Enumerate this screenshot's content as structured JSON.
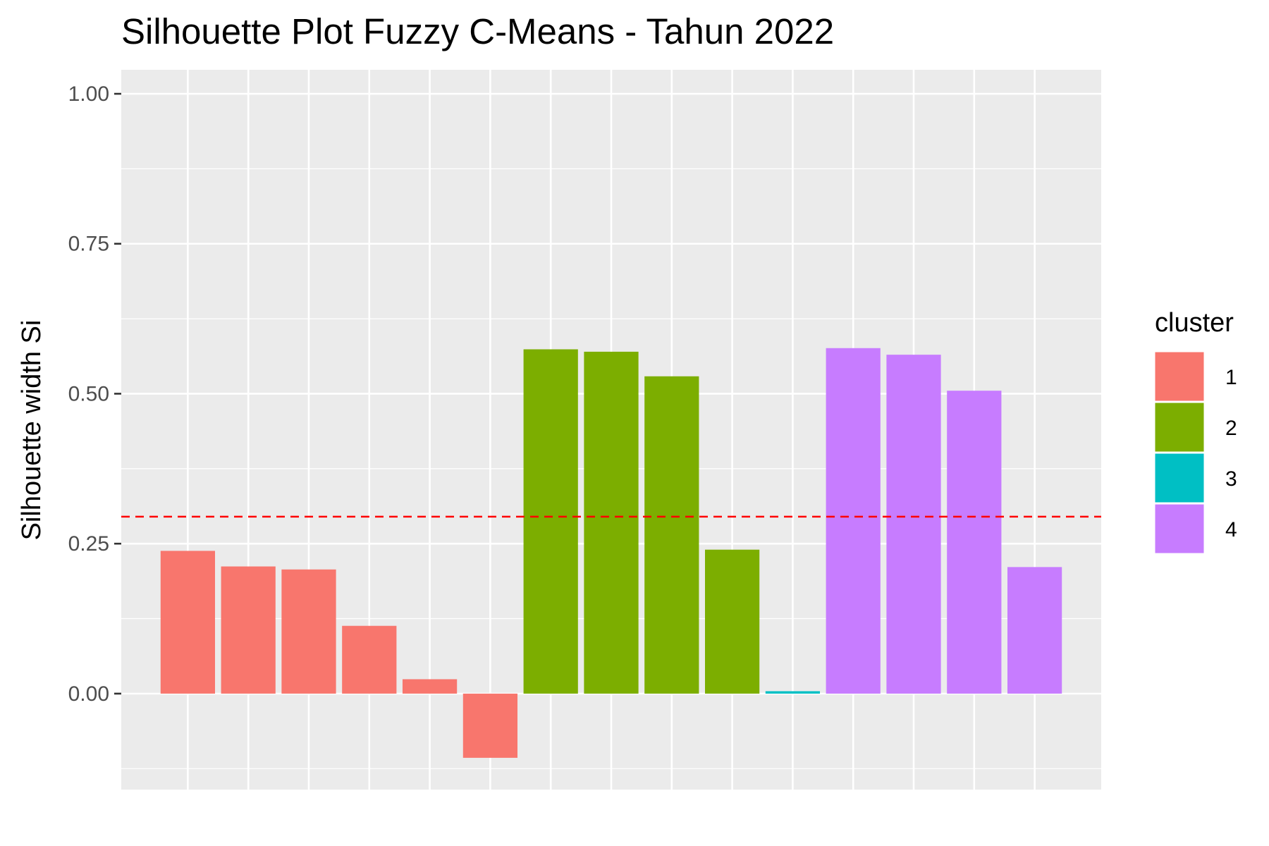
{
  "chart_data": {
    "type": "bar",
    "title": "Silhouette Plot Fuzzy C-Means - Tahun 2022",
    "xlabel": "",
    "ylabel": "Silhouette width Si",
    "ylim": [
      -0.16,
      1.04
    ],
    "yticks": [
      0.0,
      0.25,
      0.5,
      0.75,
      1.0
    ],
    "ytick_labels": [
      "0.00",
      "0.25",
      "0.50",
      "0.75",
      "1.00"
    ],
    "grid": true,
    "legend": {
      "title": "cluster",
      "placement": "right",
      "entries": [
        {
          "label": "1",
          "color": "#F8766D"
        },
        {
          "label": "2",
          "color": "#7CAE00"
        },
        {
          "label": "3",
          "color": "#00BFC4"
        },
        {
          "label": "4",
          "color": "#C77CFF"
        }
      ]
    },
    "reference_line": {
      "y": 0.295,
      "color": "#FF0000",
      "style": "dashed"
    },
    "bars": [
      {
        "cluster": "1",
        "value": 0.238
      },
      {
        "cluster": "1",
        "value": 0.212
      },
      {
        "cluster": "1",
        "value": 0.207
      },
      {
        "cluster": "1",
        "value": 0.113
      },
      {
        "cluster": "1",
        "value": 0.024
      },
      {
        "cluster": "1",
        "value": -0.107
      },
      {
        "cluster": "2",
        "value": 0.574
      },
      {
        "cluster": "2",
        "value": 0.57
      },
      {
        "cluster": "2",
        "value": 0.529
      },
      {
        "cluster": "2",
        "value": 0.24
      },
      {
        "cluster": "3",
        "value": 0.004
      },
      {
        "cluster": "4",
        "value": 0.576
      },
      {
        "cluster": "4",
        "value": 0.565
      },
      {
        "cluster": "4",
        "value": 0.505
      },
      {
        "cluster": "4",
        "value": 0.211
      }
    ],
    "colors": {
      "panel_background": "#EBEBEB",
      "grid_line": "#FFFFFF",
      "tick_text": "#4D4D4D",
      "axis_tick": "#333333"
    }
  }
}
